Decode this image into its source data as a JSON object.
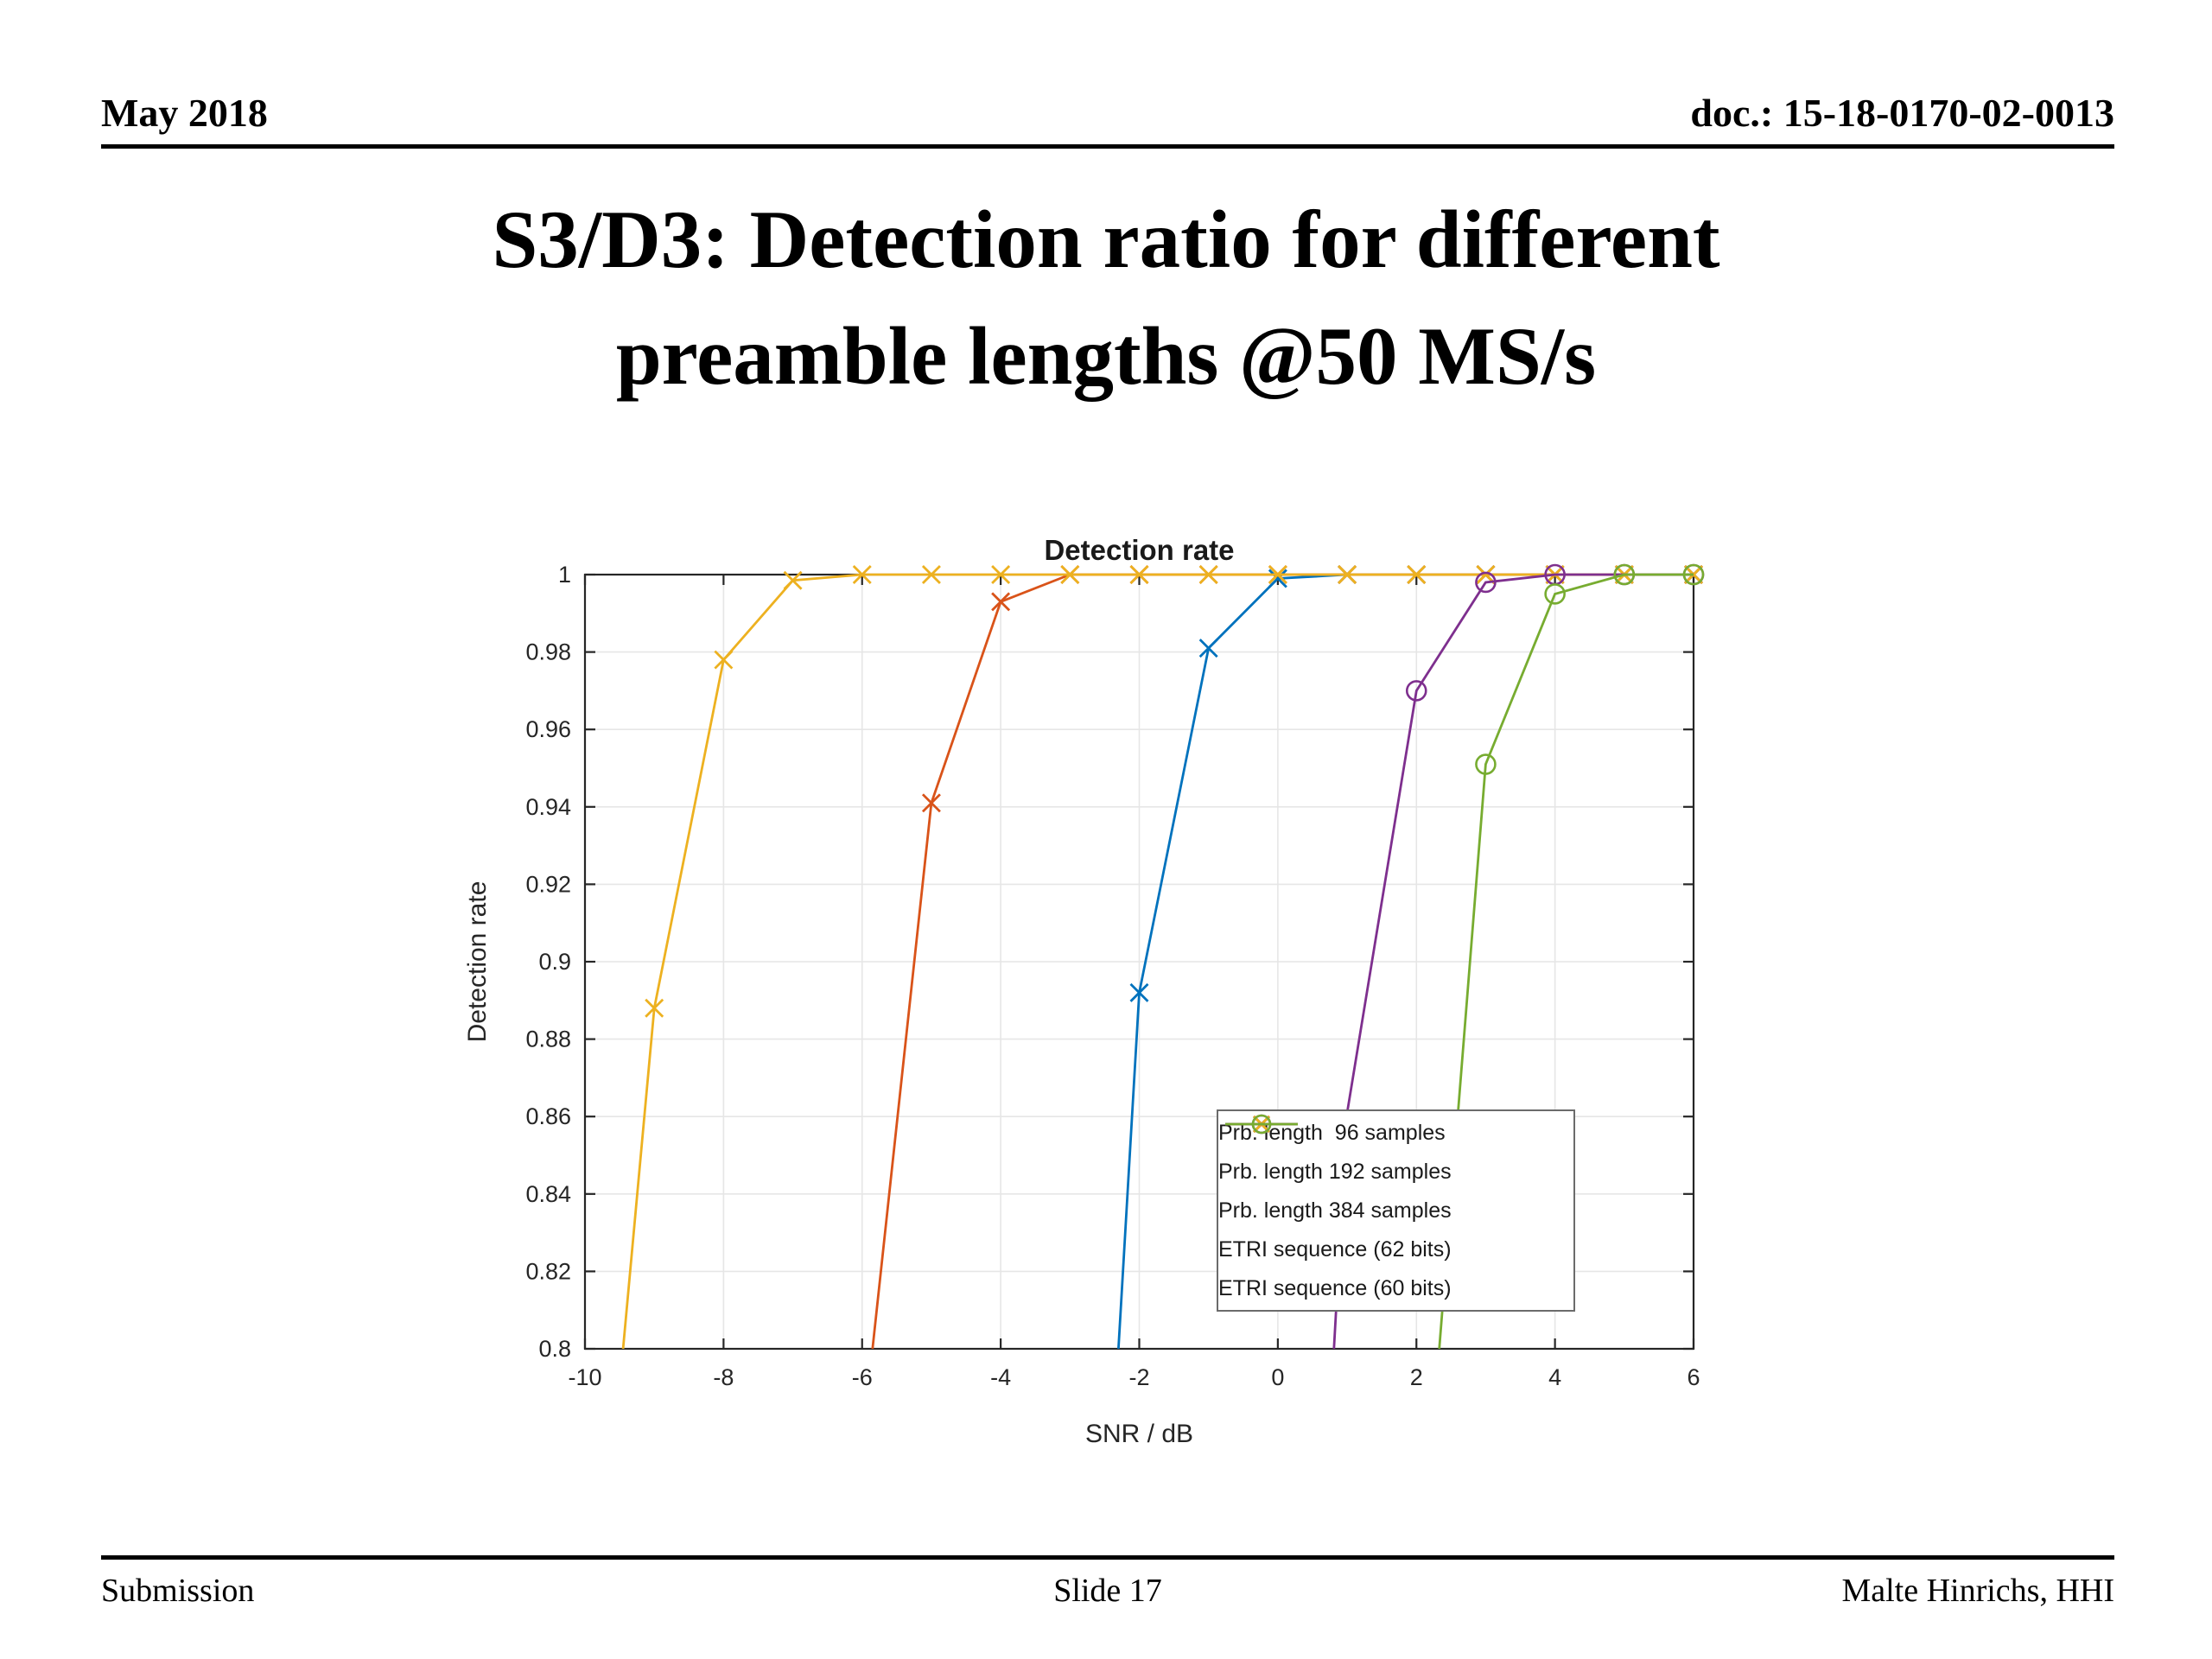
{
  "slide": {
    "header": {
      "date": "May 2018",
      "doc": "doc.: 15-18-0170-02-0013"
    },
    "title_line1": "S3/D3: Detection ratio for different",
    "title_line2": "preamble lengths @50 MS/s",
    "footer": {
      "left": "Submission",
      "center": "Slide 17",
      "right": "Malte Hinrichs, HHI"
    }
  },
  "chart_data": {
    "type": "line",
    "title": "Detection rate",
    "xlabel": "SNR / dB",
    "ylabel": "Detection rate",
    "xlim": [
      -10,
      6
    ],
    "ylim": [
      0.8,
      1.0
    ],
    "xticks": [
      -10,
      -8,
      -6,
      -4,
      -2,
      0,
      2,
      4,
      6
    ],
    "yticks": [
      0.8,
      0.82,
      0.84,
      0.86,
      0.88,
      0.9,
      0.92,
      0.94,
      0.96,
      0.98,
      1.0
    ],
    "grid": true,
    "legend_position": "inside-lower-right",
    "axis_color": "#262626",
    "grid_color": "#e6e6e6",
    "series": [
      {
        "label": "Prb. length  96 samples",
        "color": "#0072BD",
        "marker": "x",
        "line": [
          [
            -2.3,
            0.8
          ],
          [
            -2,
            0.892
          ],
          [
            -1,
            0.981
          ],
          [
            0,
            0.999
          ],
          [
            1,
            1
          ],
          [
            2,
            1
          ],
          [
            3,
            1
          ],
          [
            4,
            1
          ],
          [
            5,
            1
          ],
          [
            6,
            1
          ]
        ],
        "markers": [
          [
            -2,
            0.892
          ],
          [
            -1,
            0.981
          ],
          [
            0,
            0.999
          ],
          [
            1,
            1
          ],
          [
            2,
            1
          ],
          [
            3,
            1
          ],
          [
            4,
            1
          ],
          [
            5,
            1
          ],
          [
            6,
            1
          ]
        ]
      },
      {
        "label": "Prb. length 192 samples",
        "color": "#D95319",
        "marker": "x",
        "line": [
          [
            -5.85,
            0.8
          ],
          [
            -5,
            0.941
          ],
          [
            -4,
            0.993
          ],
          [
            -3,
            1
          ],
          [
            -2,
            1
          ],
          [
            -1,
            1
          ],
          [
            0,
            1
          ],
          [
            1,
            1
          ],
          [
            2,
            1
          ],
          [
            3,
            1
          ],
          [
            4,
            1
          ],
          [
            5,
            1
          ],
          [
            6,
            1
          ]
        ],
        "markers": [
          [
            -5,
            0.941
          ],
          [
            -4,
            0.993
          ],
          [
            -3,
            1
          ],
          [
            -2,
            1
          ],
          [
            -1,
            1
          ],
          [
            0,
            1
          ],
          [
            1,
            1
          ],
          [
            2,
            1
          ],
          [
            3,
            1
          ],
          [
            4,
            1
          ],
          [
            5,
            1
          ],
          [
            6,
            1
          ]
        ]
      },
      {
        "label": "Prb. length 384 samples",
        "color": "#EDB120",
        "marker": "x",
        "line": [
          [
            -9.45,
            0.8
          ],
          [
            -9,
            0.888
          ],
          [
            -8,
            0.978
          ],
          [
            -7,
            0.9985
          ],
          [
            -6,
            1
          ],
          [
            -5,
            1
          ],
          [
            -4,
            1
          ],
          [
            -3,
            1
          ],
          [
            -2,
            1
          ],
          [
            -1,
            1
          ],
          [
            0,
            1
          ],
          [
            1,
            1
          ],
          [
            2,
            1
          ],
          [
            3,
            1
          ],
          [
            4,
            1
          ],
          [
            5,
            1
          ],
          [
            6,
            1
          ]
        ],
        "markers": [
          [
            -9,
            0.888
          ],
          [
            -8,
            0.978
          ],
          [
            -7,
            0.9985
          ],
          [
            -6,
            1
          ],
          [
            -5,
            1
          ],
          [
            -4,
            1
          ],
          [
            -3,
            1
          ],
          [
            -2,
            1
          ],
          [
            -1,
            1
          ],
          [
            0,
            1
          ],
          [
            1,
            1
          ],
          [
            2,
            1
          ],
          [
            3,
            1
          ],
          [
            4,
            1
          ],
          [
            5,
            1
          ],
          [
            6,
            1
          ]
        ]
      },
      {
        "label": "ETRI sequence (62 bits)",
        "color": "#7E2F8E",
        "marker": "o",
        "line": [
          [
            0.81,
            0.8
          ],
          [
            1,
            0.861
          ],
          [
            2,
            0.97
          ],
          [
            3,
            0.998
          ],
          [
            4,
            1
          ],
          [
            5,
            1
          ],
          [
            6,
            1
          ]
        ],
        "markers": [
          [
            2,
            0.97
          ],
          [
            3,
            0.998
          ],
          [
            4,
            1
          ],
          [
            5,
            1
          ],
          [
            6,
            1
          ]
        ]
      },
      {
        "label": "ETRI sequence (60 bits)",
        "color": "#77AC30",
        "marker": "o",
        "line": [
          [
            2.33,
            0.8
          ],
          [
            3,
            0.951
          ],
          [
            4,
            0.995
          ],
          [
            5,
            1
          ],
          [
            6,
            1
          ]
        ],
        "markers": [
          [
            3,
            0.951
          ],
          [
            4,
            0.995
          ],
          [
            5,
            1
          ],
          [
            6,
            1
          ]
        ]
      }
    ]
  }
}
